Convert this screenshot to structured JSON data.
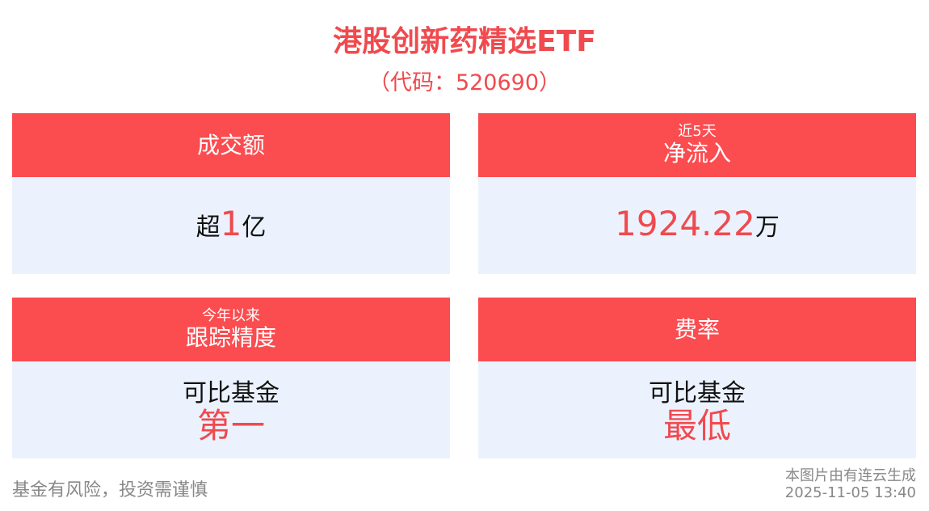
{
  "header": {
    "title": "港股创新药精选ETF",
    "subtitle": "（代码：520690）"
  },
  "cards": [
    {
      "label": "成交额",
      "value_prefix": "超",
      "value": "1",
      "value_suffix": "亿"
    },
    {
      "note": "近5天",
      "label": "净流入",
      "value": "1924.22",
      "value_suffix": "万"
    },
    {
      "note": "今年以来",
      "label": "跟踪精度",
      "value_prefix": "可比基金",
      "value": "第一"
    },
    {
      "label": "费率",
      "value_prefix": "可比基金",
      "value": "最低"
    }
  ],
  "footer": {
    "disclaimer": "基金有风险，投资需谨慎",
    "credit": "本图片由有连云生成",
    "timestamp": "2025-11-05 13:40"
  }
}
